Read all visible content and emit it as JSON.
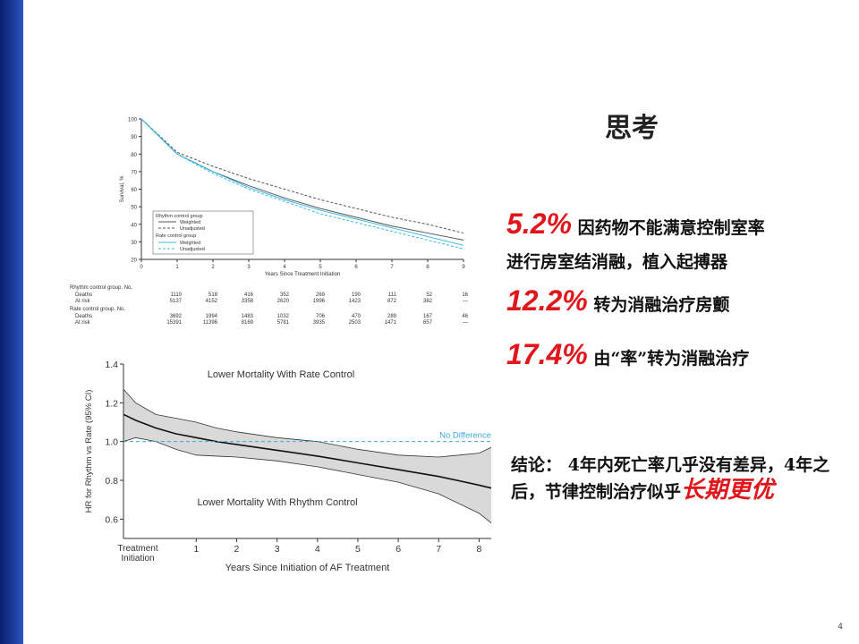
{
  "slide": {
    "title": "思考",
    "page_number": "4",
    "stats": [
      {
        "pct": "5.2%",
        "text": "因药物不能满意控制室率",
        "text2": "进行房室结消融，植入起搏器"
      },
      {
        "pct": "12.2%",
        "text": "转为消融治疗房颤"
      },
      {
        "pct": "17.4%",
        "text": "由“率”转为消融治疗"
      }
    ],
    "conclusion": {
      "lead": "结论：",
      "body": " 4年内死亡率几乎没有差异，4年之后，节律控制治疗似乎",
      "emphasis": "长期更优"
    },
    "colors": {
      "accent_red": "#e0161c",
      "sidebar_blue": "#1b3a9a",
      "band_grey": "#d9d9d9",
      "ref_line": "#3fa9d6"
    }
  },
  "chart_data": [
    {
      "type": "line",
      "ylabel": "Survival, %",
      "xlabel": "Years Since Treatment Initiation",
      "x": [
        0,
        1,
        2,
        3,
        4,
        5,
        6,
        7,
        8,
        9
      ],
      "ylim": [
        20,
        100
      ],
      "xlim": [
        0,
        9
      ],
      "yticks": [
        20,
        30,
        40,
        50,
        60,
        70,
        80,
        90,
        100
      ],
      "legend": {
        "group1": "Rhythm control group",
        "group1_weighted": "Weighted",
        "group1_unadjusted": "Unadjusted",
        "group2": "Rate control group",
        "group2_weighted": "Weighted",
        "group2_unadjusted": "Unadjusted",
        "placement": "bottom-left"
      },
      "series": [
        {
          "legend_key": "rhythm-weighted",
          "color": "#555555",
          "dash": "solid",
          "values": [
            100,
            80,
            70,
            62,
            55,
            49,
            44,
            39,
            35,
            31
          ]
        },
        {
          "legend_key": "rhythm-unadjusted",
          "color": "#555555",
          "dash": "dashed",
          "values": [
            100,
            81,
            73,
            66,
            60,
            54,
            49,
            44,
            40,
            35
          ]
        },
        {
          "legend_key": "rate-weighted",
          "color": "#3fb7e6",
          "dash": "solid",
          "values": [
            100,
            80,
            70,
            61,
            54,
            48,
            43,
            38,
            33,
            28
          ]
        },
        {
          "legend_key": "rate-unadjusted",
          "color": "#3fb7e6",
          "dash": "dashed",
          "values": [
            100,
            80,
            69,
            60,
            53,
            46,
            41,
            36,
            31,
            26
          ]
        }
      ],
      "risk_table": {
        "groups": [
          {
            "label": "Rhythm control group, No.",
            "rows": [
              {
                "label": "Deaths",
                "values": [
                  "1110",
                  "518",
                  "416",
                  "352",
                  "269",
                  "190",
                  "111",
                  "52",
                  "16"
                ]
              },
              {
                "label": "At risk",
                "values": [
                  "5137",
                  "4152",
                  "3358",
                  "2620",
                  "1996",
                  "1423",
                  "872",
                  "382",
                  "—"
                ]
              }
            ]
          },
          {
            "label": "Rate control group, No.",
            "rows": [
              {
                "label": "Deaths",
                "values": [
                  "3692",
                  "1994",
                  "1483",
                  "1032",
                  "706",
                  "470",
                  "289",
                  "167",
                  "46"
                ]
              },
              {
                "label": "At risk",
                "values": [
                  "15391",
                  "11396",
                  "8169",
                  "5781",
                  "3935",
                  "2503",
                  "1471",
                  "657",
                  "—"
                ]
              }
            ]
          }
        ]
      }
    },
    {
      "type": "line",
      "ylabel": "HR for Rhythm vs Rate (95% CI)",
      "xlabel": "Years Since Initiation of AF Treatment",
      "xlim": [
        -0.8,
        8.3
      ],
      "ylim": [
        0.5,
        1.4
      ],
      "yticks": [
        0.6,
        0.8,
        1.0,
        1.2,
        1.4
      ],
      "xticks": [
        1,
        2,
        3,
        4,
        5,
        6,
        7,
        8
      ],
      "x0_label_line1": "Treatment",
      "x0_label_line2": "Initiation",
      "annotation_top": "Lower Mortality With Rate Control",
      "annotation_bottom": "Lower Mortality With Rhythm Control",
      "reference": {
        "y": 1.0,
        "label": "No Difference"
      },
      "x": [
        -0.8,
        -0.5,
        0,
        0.5,
        1,
        1.5,
        2,
        3,
        4,
        5,
        6,
        7,
        8,
        8.3
      ],
      "hr": [
        1.14,
        1.11,
        1.07,
        1.04,
        1.02,
        1.0,
        0.985,
        0.955,
        0.925,
        0.89,
        0.855,
        0.82,
        0.775,
        0.76
      ],
      "upper": [
        1.27,
        1.2,
        1.14,
        1.12,
        1.1,
        1.07,
        1.05,
        1.02,
        1.0,
        0.96,
        0.93,
        0.92,
        0.94,
        0.97
      ],
      "lower": [
        1.0,
        1.02,
        1.0,
        0.96,
        0.93,
        0.925,
        0.92,
        0.9,
        0.87,
        0.83,
        0.79,
        0.73,
        0.63,
        0.58
      ]
    }
  ]
}
